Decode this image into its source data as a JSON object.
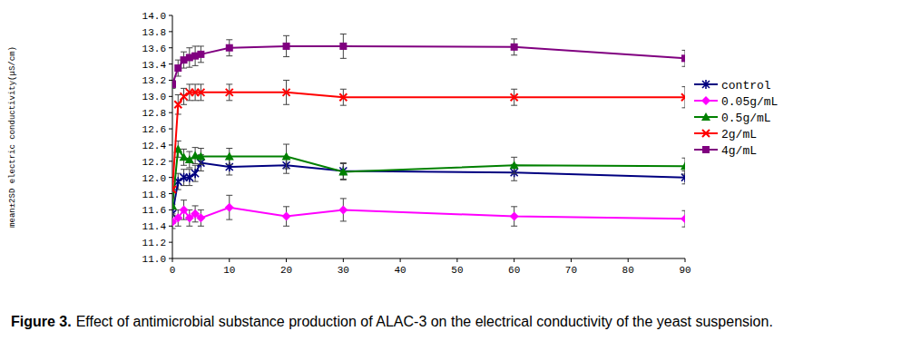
{
  "chart_data": {
    "type": "line",
    "y_label": "mean±2SD electric conductivity(μS/cm)",
    "caption_label": "Figure 3.",
    "caption": "Effect of antimicrobial substance production of ALAC-3 on the electrical conductivity of the yeast suspension.",
    "x": [
      0,
      1,
      2,
      3,
      4,
      5,
      10,
      20,
      30,
      60,
      90
    ],
    "xlim": [
      0,
      90
    ],
    "xticks": [
      0,
      10,
      20,
      30,
      40,
      50,
      60,
      70,
      80,
      90
    ],
    "ylim": [
      11.0,
      14.0
    ],
    "yticks": [
      {
        "value": 11.0,
        "label": "11.0"
      },
      11.2,
      11.4,
      11.6,
      11.8,
      {
        "value": 12.0,
        "label": "12.0"
      },
      12.2,
      12.4,
      12.6,
      12.8,
      {
        "value": 13.0,
        "label": "13.0"
      },
      13.2,
      13.4,
      13.6,
      13.8,
      {
        "value": 14.0,
        "label": "14.0"
      }
    ],
    "grid": false,
    "legend": "right",
    "series": [
      {
        "name": "control",
        "color": "#000080",
        "marker": "star",
        "line_style": "solid",
        "values": [
          11.55,
          11.95,
          12.0,
          12.0,
          12.05,
          12.18,
          12.13,
          12.15,
          12.08,
          12.06,
          12.0
        ],
        "errors": [
          0.12,
          0.1,
          0.1,
          0.1,
          0.1,
          0.1,
          0.1,
          0.1,
          0.1,
          0.1,
          0.08
        ]
      },
      {
        "name": "0.05g/mL",
        "color": "#ff00ff",
        "marker": "diamond",
        "line_style": "solid",
        "values": [
          11.45,
          11.5,
          11.6,
          11.5,
          11.55,
          11.5,
          11.63,
          11.52,
          11.6,
          11.52,
          11.49
        ],
        "errors": [
          0.08,
          0.1,
          0.12,
          0.1,
          0.1,
          0.1,
          0.15,
          0.12,
          0.14,
          0.12,
          0.1
        ]
      },
      {
        "name": "0.5g/mL",
        "color": "#008000",
        "marker": "triangle",
        "line_style": "solid",
        "values": [
          11.65,
          12.35,
          12.25,
          12.22,
          12.27,
          12.26,
          12.26,
          12.26,
          12.07,
          12.15,
          12.14
        ],
        "errors": [
          0.1,
          0.1,
          0.1,
          0.1,
          0.1,
          0.1,
          0.1,
          0.15,
          0.1,
          0.1,
          0.1
        ]
      },
      {
        "name": "2g/mL",
        "color": "#ff0000",
        "marker": "x",
        "line_style": "solid",
        "values": [
          11.85,
          12.9,
          13.0,
          13.05,
          13.05,
          13.05,
          13.05,
          13.05,
          12.99,
          12.99,
          12.99
        ],
        "errors": [
          0.1,
          0.12,
          0.1,
          0.1,
          0.1,
          0.1,
          0.1,
          0.15,
          0.1,
          0.1,
          0.13
        ]
      },
      {
        "name": "4g/mL",
        "color": "#800080",
        "marker": "square",
        "line_style": "solid",
        "values": [
          13.15,
          13.35,
          13.45,
          13.48,
          13.5,
          13.52,
          13.6,
          13.62,
          13.62,
          13.61,
          13.47
        ],
        "errors": [
          0.05,
          0.1,
          0.1,
          0.12,
          0.12,
          0.1,
          0.1,
          0.13,
          0.15,
          0.1,
          0.1
        ]
      }
    ]
  }
}
